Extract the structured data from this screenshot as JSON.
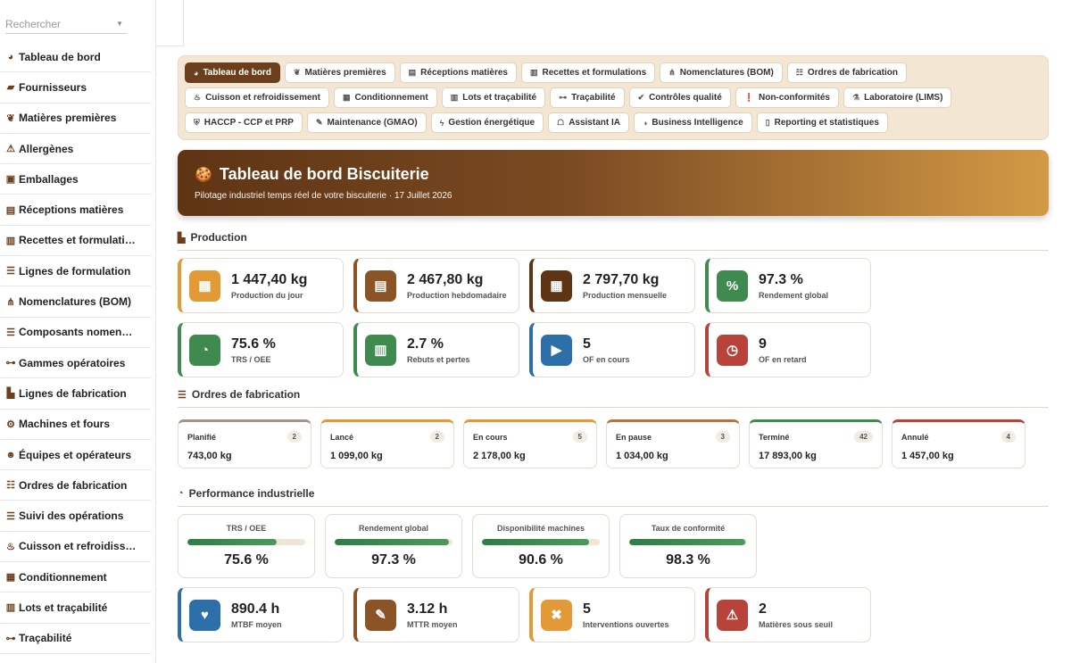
{
  "search": {
    "placeholder": "Rechercher"
  },
  "sidebar": {
    "items": [
      {
        "label": "Tableau de bord",
        "icon": "dashboard-icon"
      },
      {
        "label": "Fournisseurs",
        "icon": "truck-icon"
      },
      {
        "label": "Matières premières",
        "icon": "seedling-icon"
      },
      {
        "label": "Allergènes",
        "icon": "warning-icon"
      },
      {
        "label": "Emballages",
        "icon": "box-icon"
      },
      {
        "label": "Réceptions matières",
        "icon": "dolly-icon"
      },
      {
        "label": "Recettes et formulati…",
        "icon": "book-icon"
      },
      {
        "label": "Lignes de formulation",
        "icon": "list-icon"
      },
      {
        "label": "Nomenclatures (BOM)",
        "icon": "sitemap-icon"
      },
      {
        "label": "Composants nomen…",
        "icon": "list-icon"
      },
      {
        "label": "Gammes opératoires",
        "icon": "diagram-icon"
      },
      {
        "label": "Lignes de fabrication",
        "icon": "factory-icon"
      },
      {
        "label": "Machines et fours",
        "icon": "gears-icon"
      },
      {
        "label": "Équipes et opérateurs",
        "icon": "users-icon"
      },
      {
        "label": "Ordres de fabrication",
        "icon": "list-check-icon"
      },
      {
        "label": "Suivi des opérations",
        "icon": "list-icon"
      },
      {
        "label": "Cuisson et refroidiss…",
        "icon": "fire-icon"
      },
      {
        "label": "Conditionnement",
        "icon": "boxes-icon"
      },
      {
        "label": "Lots et traçabilité",
        "icon": "barcode-icon"
      },
      {
        "label": "Traçabilité",
        "icon": "diagram-icon"
      }
    ]
  },
  "tabs": [
    {
      "label": "Tableau de bord",
      "icon": "dashboard-icon",
      "active": true
    },
    {
      "label": "Matières premières",
      "icon": "seedling-icon"
    },
    {
      "label": "Réceptions matières",
      "icon": "dolly-icon"
    },
    {
      "label": "Recettes et formulations",
      "icon": "book-icon"
    },
    {
      "label": "Nomenclatures (BOM)",
      "icon": "sitemap-icon"
    },
    {
      "label": "Ordres de fabrication",
      "icon": "list-check-icon"
    },
    {
      "label": "Cuisson et refroidissement",
      "icon": "fire-icon"
    },
    {
      "label": "Conditionnement",
      "icon": "boxes-icon"
    },
    {
      "label": "Lots et traçabilité",
      "icon": "barcode-icon"
    },
    {
      "label": "Traçabilité",
      "icon": "diagram-icon"
    },
    {
      "label": "Contrôles qualité",
      "icon": "check-circle-icon"
    },
    {
      "label": "Non-conformités",
      "icon": "exclamation-circle-icon"
    },
    {
      "label": "Laboratoire (LIMS)",
      "icon": "flask-icon"
    },
    {
      "label": "HACCP - CCP et PRP",
      "icon": "shield-icon"
    },
    {
      "label": "Maintenance (GMAO)",
      "icon": "wrench-icon"
    },
    {
      "label": "Gestion énergétique",
      "icon": "bolt-icon"
    },
    {
      "label": "Assistant IA",
      "icon": "robot-icon"
    },
    {
      "label": "Business Intelligence",
      "icon": "pie-chart-icon"
    },
    {
      "label": "Reporting et statistiques",
      "icon": "file-icon"
    }
  ],
  "hero": {
    "title": "Tableau de bord Biscuiterie",
    "subtitle": "Pilotage industriel temps réel de votre biscuiterie · 17 Juillet 2026"
  },
  "production": {
    "title": "Production",
    "kpis": [
      {
        "value": "1 447,40 kg",
        "label": "Production du jour",
        "color": "#e19a36",
        "icon": "calendar-day-icon"
      },
      {
        "value": "2 467,80 kg",
        "label": "Production hebdomadaire",
        "color": "#8a5426",
        "icon": "calendar-week-icon"
      },
      {
        "value": "2 797,70 kg",
        "label": "Production mensuelle",
        "color": "#5e3414",
        "icon": "calendar-icon"
      },
      {
        "value": "97.3 %",
        "label": "Rendement global",
        "color": "#3f8a4e",
        "icon": "percent-icon"
      },
      {
        "value": "75.6 %",
        "label": "TRS / OEE",
        "color": "#3f8a4e",
        "icon": "gauge-icon"
      },
      {
        "value": "2.7 %",
        "label": "Rebuts et pertes",
        "color": "#3f8a4e",
        "icon": "trash-icon"
      },
      {
        "value": "5",
        "label": "OF en cours",
        "color": "#2d6fa8",
        "icon": "play-icon"
      },
      {
        "value": "9",
        "label": "OF en retard",
        "color": "#b8433a",
        "icon": "clock-icon"
      }
    ]
  },
  "orders": {
    "title": "Ordres de fabrication",
    "items": [
      {
        "status": "Planifié",
        "count": "2",
        "weight": "743,00 kg",
        "color": "#a0968a"
      },
      {
        "status": "Lancé",
        "count": "2",
        "weight": "1 099,00 kg",
        "color": "#e19a36"
      },
      {
        "status": "En cours",
        "count": "5",
        "weight": "2 178,00 kg",
        "color": "#e19a36"
      },
      {
        "status": "En pause",
        "count": "3",
        "weight": "1 034,00 kg",
        "color": "#b07840"
      },
      {
        "status": "Terminé",
        "count": "42",
        "weight": "17 893,00 kg",
        "color": "#3f8a4e"
      },
      {
        "status": "Annulé",
        "count": "4",
        "weight": "1 457,00 kg",
        "color": "#b8433a"
      }
    ]
  },
  "performance": {
    "title": "Performance industrielle",
    "gauges": [
      {
        "label": "TRS / OEE",
        "value": "75.6 %",
        "level": 75.6
      },
      {
        "label": "Rendement global",
        "value": "97.3 %",
        "level": 97.3
      },
      {
        "label": "Disponibilité machines",
        "value": "90.6 %",
        "level": 90.6
      },
      {
        "label": "Taux de conformité",
        "value": "98.3 %",
        "level": 98.3
      }
    ],
    "kpis": [
      {
        "value": "890.4 h",
        "label": "MTBF moyen",
        "color": "#2d6fa8",
        "icon": "heartbeat-icon"
      },
      {
        "value": "3.12 h",
        "label": "MTTR moyen",
        "color": "#8a5426",
        "icon": "wrench-icon"
      },
      {
        "value": "5",
        "label": "Interventions ouvertes",
        "color": "#e19a36",
        "icon": "tools-icon"
      },
      {
        "value": "2",
        "label": "Matières sous seuil",
        "color": "#b8433a",
        "icon": "warning-icon"
      }
    ]
  }
}
